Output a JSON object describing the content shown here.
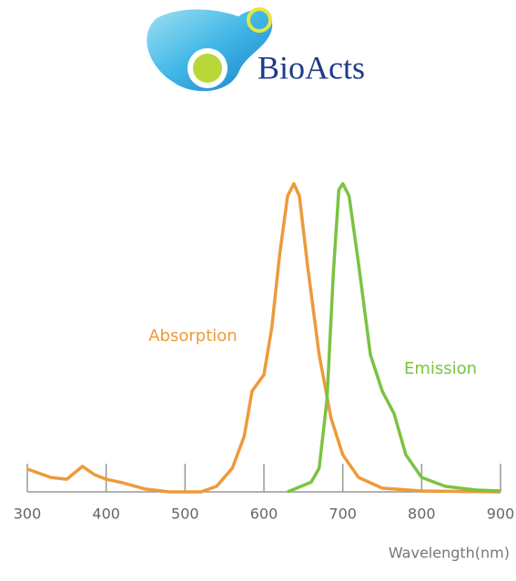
{
  "logo": "BioActs",
  "chart_data": {
    "type": "line",
    "x_label": "Wavelength(nm)",
    "xlim": [
      300,
      900
    ],
    "xticks": [
      300,
      400,
      500,
      600,
      700,
      800,
      900
    ],
    "ylim": [
      0,
      1
    ],
    "series": [
      {
        "name": "Absorption",
        "color": "#ee9a3a",
        "x": [
          300,
          330,
          350,
          370,
          385,
          400,
          420,
          450,
          480,
          520,
          540,
          560,
          575,
          585,
          600,
          610,
          620,
          630,
          638,
          645,
          655,
          670,
          685,
          700,
          720,
          750,
          800,
          900
        ],
        "values": [
          0.074,
          0.047,
          0.041,
          0.083,
          0.056,
          0.041,
          0.03,
          0.009,
          0,
          0,
          0.018,
          0.077,
          0.18,
          0.327,
          0.38,
          0.534,
          0.77,
          0.96,
          1.0,
          0.96,
          0.74,
          0.445,
          0.24,
          0.12,
          0.047,
          0.012,
          0.003,
          0
        ]
      },
      {
        "name": "Emission",
        "color": "#7cc242",
        "x": [
          630,
          660,
          670,
          680,
          688,
          695,
          700,
          708,
          720,
          735,
          750,
          765,
          780,
          800,
          830,
          870,
          900
        ],
        "values": [
          0,
          0.032,
          0.077,
          0.3,
          0.71,
          0.98,
          1.0,
          0.96,
          0.74,
          0.445,
          0.327,
          0.254,
          0.12,
          0.047,
          0.018,
          0.006,
          0.003
        ]
      }
    ]
  }
}
